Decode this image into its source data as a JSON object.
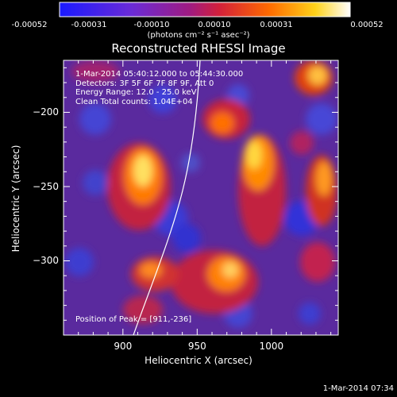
{
  "colorbar": {
    "ticks": [
      "-0.00052",
      "-0.00031",
      "-0.00010",
      "0.00010",
      "0.00031",
      "0.00052"
    ],
    "units": "(photons cm⁻² s⁻¹ asec⁻²)"
  },
  "chart_data": {
    "type": "heatmap",
    "title": "Reconstructed RHESSI Image",
    "xlabel": "Heliocentric X (arcsec)",
    "ylabel": "Heliocentric Y (arcsec)",
    "xlim": [
      860,
      1045
    ],
    "ylim": [
      -350,
      -165
    ],
    "x_ticks": [
      900,
      950,
      1000
    ],
    "y_ticks": [
      -200,
      -250,
      -300
    ],
    "colorbar_range": [
      -0.00052,
      0.00052
    ],
    "info_lines": [
      "1-Mar-2014 05:40:12.000 to 05:44:30.000",
      "Detectors: 3F 5F 6F 7F 8F 9F, Att 0",
      "Energy Range: 12.0 - 25.0 keV",
      "Clean    Total counts: 1.04E+04"
    ],
    "peak_label": "Position of Peak = [911,-236]",
    "peak": [
      911,
      -236
    ],
    "limb_curve_x_at_y": [
      [
        907,
        -350
      ],
      [
        918,
        -310
      ],
      [
        928,
        -270
      ],
      [
        938,
        -230
      ],
      [
        947,
        -190
      ],
      [
        952,
        -165
      ]
    ]
  },
  "footer": "1-Mar-2014 07:34"
}
